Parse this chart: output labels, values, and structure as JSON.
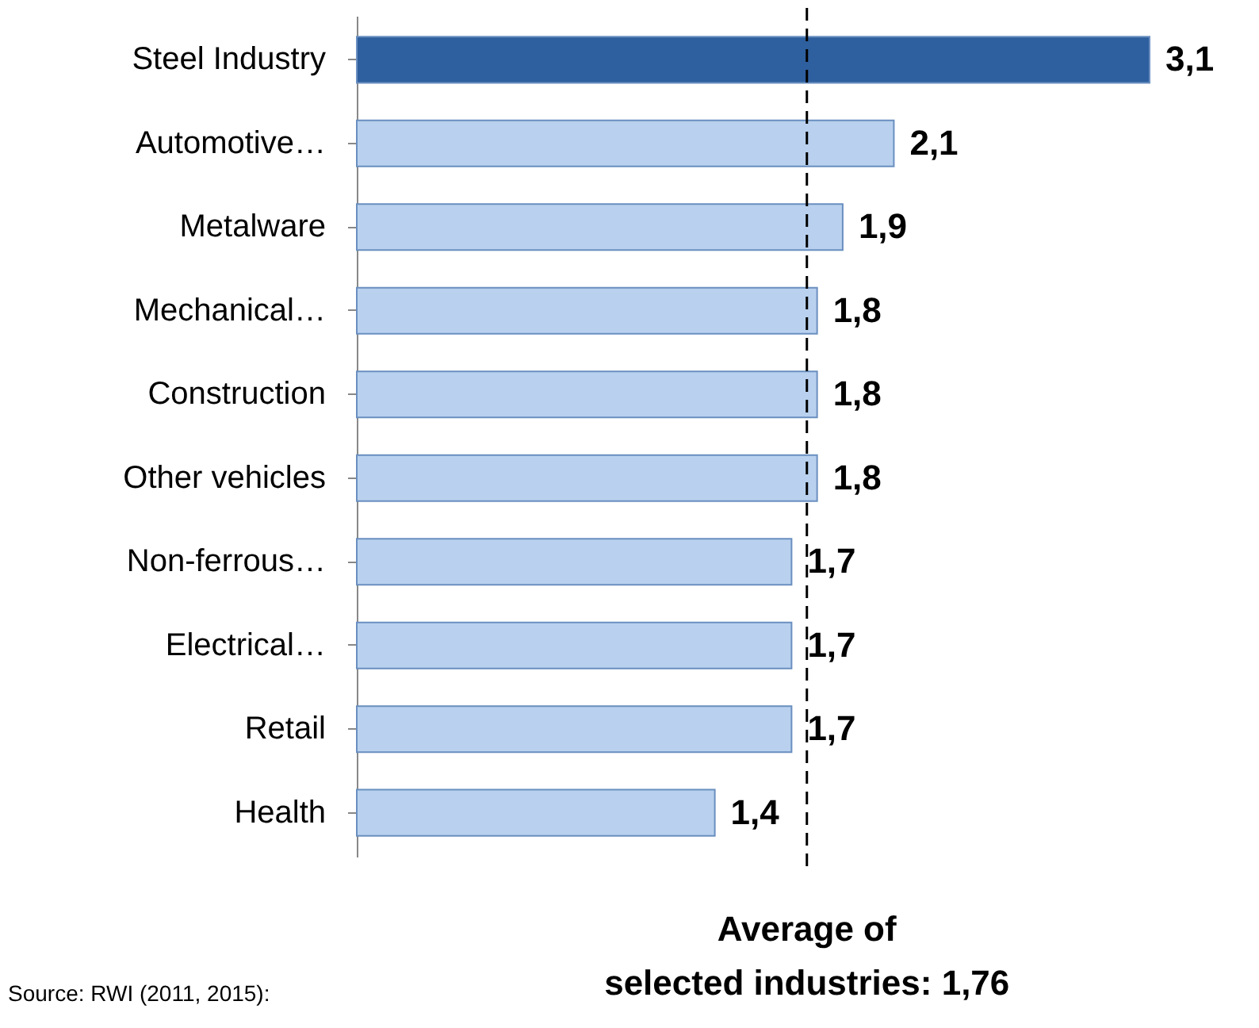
{
  "chart_data": {
    "type": "bar",
    "orientation": "horizontal",
    "categories": [
      "Steel Industry",
      "Automotive…",
      "Metalware",
      "Mechanical…",
      "Construction",
      "Other vehicles",
      "Non-ferrous…",
      "Electrical…",
      "Retail",
      "Health"
    ],
    "values": [
      3.1,
      2.1,
      1.9,
      1.8,
      1.8,
      1.8,
      1.7,
      1.7,
      1.7,
      1.4
    ],
    "colors": [
      "#2e5f9e",
      "#b9d1ee",
      "#b9d1ee",
      "#b9d1ee",
      "#b9d1ee",
      "#b9d1ee",
      "#b9d1ee",
      "#b9d1ee",
      "#b9d1ee",
      "#b9d1ee"
    ],
    "value_labels": [
      "3,1",
      "2,1",
      "1,9",
      "1,8",
      "1,8",
      "1,8",
      "1,7",
      "1,7",
      "1,7",
      "1,4"
    ],
    "xlim": [
      0,
      3.1
    ],
    "tick_labels": "y",
    "grid": false,
    "ref_lines": [
      {
        "axis": "x",
        "value": 1.76,
        "label": "Average of selected industries: 1,76",
        "color": "#000000",
        "line_style": "dashed"
      }
    ],
    "annotations": [
      "Source: RWI (2011, 2015):"
    ]
  }
}
